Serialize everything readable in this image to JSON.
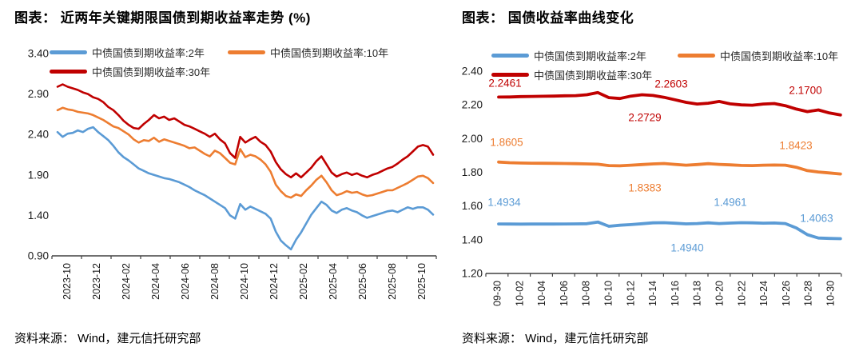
{
  "colors": {
    "blue": "#5B9BD5",
    "orange": "#ED7D31",
    "red": "#C00000",
    "axis": "#404040",
    "tick_text": "#1a1a1a"
  },
  "chart_data": [
    {
      "type": "line",
      "title": "图表： 近两年关键期限国债到期收益率走势 (%)",
      "source": "资料来源： Wind，建元信托研究部",
      "grid": false,
      "legend_position": "top-left, two rows",
      "ylim": [
        0.9,
        3.4
      ],
      "y_ticks": [
        "3.40",
        "2.90",
        "2.40",
        "1.90",
        "1.40",
        "0.90"
      ],
      "x_ticks": [
        "2023-10",
        "2023-12",
        "2024-02",
        "2024-04",
        "2024-06",
        "2024-08",
        "2024-10",
        "2024-12",
        "2025-02",
        "2025-04",
        "2025-06",
        "2025-08",
        "2025-10"
      ],
      "x_unit": "three samples per month, 2023-10 through 2025-10",
      "series": [
        {
          "name": "中债国债到期收益率:2年",
          "color": "#5B9BD5",
          "values": [
            2.43,
            2.37,
            2.41,
            2.42,
            2.45,
            2.43,
            2.47,
            2.49,
            2.43,
            2.38,
            2.33,
            2.26,
            2.18,
            2.12,
            2.08,
            2.03,
            1.98,
            1.95,
            1.92,
            1.9,
            1.88,
            1.86,
            1.85,
            1.83,
            1.81,
            1.78,
            1.75,
            1.71,
            1.68,
            1.65,
            1.61,
            1.57,
            1.53,
            1.49,
            1.4,
            1.36,
            1.54,
            1.47,
            1.51,
            1.48,
            1.45,
            1.42,
            1.36,
            1.2,
            1.09,
            1.03,
            0.98,
            1.1,
            1.19,
            1.3,
            1.41,
            1.49,
            1.57,
            1.53,
            1.46,
            1.43,
            1.47,
            1.49,
            1.46,
            1.44,
            1.4,
            1.37,
            1.39,
            1.41,
            1.43,
            1.45,
            1.46,
            1.44,
            1.47,
            1.5,
            1.48,
            1.5,
            1.5,
            1.47,
            1.41
          ]
        },
        {
          "name": "中债国债到期收益率:10年",
          "color": "#ED7D31",
          "values": [
            2.7,
            2.73,
            2.71,
            2.7,
            2.68,
            2.67,
            2.66,
            2.64,
            2.61,
            2.58,
            2.54,
            2.5,
            2.48,
            2.44,
            2.4,
            2.34,
            2.3,
            2.33,
            2.32,
            2.36,
            2.31,
            2.34,
            2.32,
            2.3,
            2.28,
            2.26,
            2.23,
            2.24,
            2.2,
            2.16,
            2.13,
            2.2,
            2.17,
            2.11,
            2.05,
            2.03,
            2.22,
            2.12,
            2.15,
            2.13,
            2.09,
            2.03,
            1.94,
            1.78,
            1.7,
            1.64,
            1.62,
            1.66,
            1.64,
            1.71,
            1.77,
            1.84,
            1.89,
            1.81,
            1.71,
            1.65,
            1.67,
            1.7,
            1.68,
            1.69,
            1.66,
            1.64,
            1.65,
            1.67,
            1.69,
            1.71,
            1.71,
            1.74,
            1.77,
            1.8,
            1.84,
            1.88,
            1.89,
            1.86,
            1.8
          ]
        },
        {
          "name": "中债国债到期收益率:30年",
          "color": "#C00000",
          "values": [
            2.99,
            3.02,
            2.99,
            2.97,
            2.95,
            2.92,
            2.9,
            2.86,
            2.84,
            2.8,
            2.74,
            2.7,
            2.64,
            2.57,
            2.52,
            2.48,
            2.47,
            2.53,
            2.58,
            2.64,
            2.6,
            2.62,
            2.58,
            2.6,
            2.56,
            2.52,
            2.5,
            2.47,
            2.44,
            2.41,
            2.37,
            2.41,
            2.34,
            2.29,
            2.17,
            2.11,
            2.37,
            2.3,
            2.34,
            2.37,
            2.31,
            2.27,
            2.19,
            2.06,
            1.97,
            1.91,
            1.87,
            1.92,
            1.87,
            1.93,
            1.99,
            2.07,
            2.13,
            2.03,
            1.93,
            1.88,
            1.91,
            1.93,
            1.9,
            1.92,
            1.89,
            1.87,
            1.9,
            1.92,
            1.95,
            1.98,
            2.0,
            2.04,
            2.09,
            2.13,
            2.19,
            2.25,
            2.27,
            2.25,
            2.15
          ]
        }
      ]
    },
    {
      "type": "line",
      "title": "图表： 国债收益率曲线变化",
      "source": "资料来源： Wind，建元信托研究部",
      "grid": false,
      "legend_position": "top-left, two rows",
      "ylim": [
        1.2,
        2.4
      ],
      "y_ticks": [
        "2.40",
        "2.20",
        "2.00",
        "1.80",
        "1.60",
        "1.40",
        "1.20"
      ],
      "x_ticks": [
        "09-30",
        "10-02",
        "10-04",
        "10-06",
        "10-08",
        "10-10",
        "10-12",
        "10-14",
        "10-16",
        "10-18",
        "10-20",
        "10-22",
        "10-24",
        "10-26",
        "10-28",
        "10-30"
      ],
      "x_unit": "daily, 09-30 through 10-31",
      "series": [
        {
          "name": "中债国债到期收益率:2年",
          "color": "#5B9BD5",
          "values": [
            1.4934,
            1.493,
            1.4928,
            1.493,
            1.4932,
            1.493,
            1.4935,
            1.494,
            1.495,
            1.505,
            1.48,
            1.486,
            1.49,
            1.495,
            1.5,
            1.501,
            1.498,
            1.494,
            1.496,
            1.5,
            1.4961,
            1.499,
            1.501,
            1.5,
            1.4985,
            1.4995,
            1.496,
            1.47,
            1.43,
            1.41,
            1.4075,
            1.4063
          ]
        },
        {
          "name": "中债国债到期收益率:10年",
          "color": "#ED7D31",
          "values": [
            1.8605,
            1.857,
            1.855,
            1.854,
            1.8535,
            1.853,
            1.852,
            1.851,
            1.85,
            1.848,
            1.84,
            1.8383,
            1.842,
            1.846,
            1.85,
            1.852,
            1.847,
            1.842,
            1.846,
            1.851,
            1.847,
            1.844,
            1.841,
            1.84,
            1.842,
            1.843,
            1.8423,
            1.83,
            1.81,
            1.802,
            1.796,
            1.79
          ]
        },
        {
          "name": "中债国债到期收益率:30年",
          "color": "#C00000",
          "values": [
            2.2461,
            2.247,
            2.249,
            2.25,
            2.251,
            2.252,
            2.254,
            2.255,
            2.26,
            2.2729,
            2.243,
            2.238,
            2.252,
            2.2603,
            2.256,
            2.245,
            2.23,
            2.215,
            2.205,
            2.21,
            2.22,
            2.206,
            2.2,
            2.198,
            2.205,
            2.208,
            2.195,
            2.175,
            2.16,
            2.17,
            2.152,
            2.14
          ]
        }
      ],
      "annotations": [
        {
          "text": "2.2461",
          "series": "30年"
        },
        {
          "text": "2.2729",
          "series": "30年"
        },
        {
          "text": "2.2603",
          "series": "30年"
        },
        {
          "text": "2.1700",
          "series": "30年"
        },
        {
          "text": "1.8605",
          "series": "10年"
        },
        {
          "text": "1.8383",
          "series": "10年"
        },
        {
          "text": "1.8423",
          "series": "10年"
        },
        {
          "text": "1.4934",
          "series": "2年"
        },
        {
          "text": "1.4961",
          "series": "2年"
        },
        {
          "text": "1.4940",
          "series": "2年"
        },
        {
          "text": "1.4063",
          "series": "2年"
        }
      ]
    }
  ]
}
